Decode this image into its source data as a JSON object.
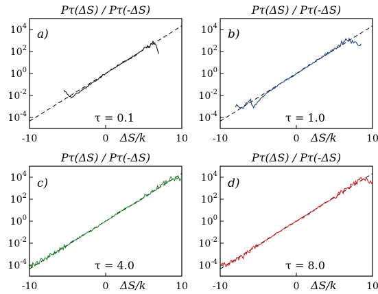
{
  "chart_data": [
    {
      "type": "line",
      "panel_label": "a)",
      "title": "Pτ(ΔS) / Pτ(-ΔS)",
      "annotation": "τ = 0.1",
      "xlabel": "ΔS/k",
      "xlim": [
        -10,
        10
      ],
      "ylim": [
        -5,
        5
      ],
      "yscale": "log10",
      "x_ticks": [
        "-10",
        "0",
        "10"
      ],
      "y_ticks": [
        {
          "label": "10^4",
          "exp": 4
        },
        {
          "label": "10^2",
          "exp": 2
        },
        {
          "label": "10^0",
          "exp": 0
        },
        {
          "label": "10^-2",
          "exp": -2
        },
        {
          "label": "10^-4",
          "exp": -4
        }
      ],
      "series": [
        {
          "color": "#000000",
          "style": "dashed",
          "x": [
            -10,
            10
          ],
          "y_log10": [
            -4.34,
            4.34
          ]
        },
        {
          "color": "#111111",
          "style": "solid",
          "x": [
            -5.5,
            -4.5,
            -3.5,
            -2,
            0,
            2,
            4,
            5.5,
            6.5,
            7
          ],
          "y_log10": [
            -1.7,
            -2.2,
            -1.7,
            -1.0,
            0.0,
            0.9,
            1.7,
            2.4,
            2.9,
            1.8
          ]
        }
      ]
    },
    {
      "type": "line",
      "panel_label": "b)",
      "title": "Pτ(ΔS) / Pτ(-ΔS)",
      "annotation": "τ = 1.0",
      "xlabel": "ΔS/k",
      "xlim": [
        -10,
        10
      ],
      "ylim": [
        -5,
        5
      ],
      "yscale": "log10",
      "x_ticks": [
        "-10",
        "0",
        "10"
      ],
      "y_ticks": [
        {
          "label": "10^4",
          "exp": 4
        },
        {
          "label": "10^2",
          "exp": 2
        },
        {
          "label": "10^0",
          "exp": 0
        },
        {
          "label": "10^-2",
          "exp": -2
        },
        {
          "label": "10^-4",
          "exp": -4
        }
      ],
      "series": [
        {
          "color": "#000000",
          "style": "dashed",
          "x": [
            -10,
            10
          ],
          "y_log10": [
            -4.34,
            4.34
          ]
        },
        {
          "color": "#1f3f8f",
          "style": "solid",
          "x": [
            -8,
            -7,
            -6,
            -5.5,
            -5,
            -4,
            -2,
            0,
            2,
            4,
            5.5,
            6.5,
            7.5,
            8.5
          ],
          "y_log10": [
            -2.9,
            -3.0,
            -2.5,
            -3.1,
            -2.6,
            -1.8,
            -0.9,
            0.0,
            0.9,
            1.8,
            2.4,
            3.2,
            2.8,
            2.7
          ]
        }
      ]
    },
    {
      "type": "line",
      "panel_label": "c)",
      "title": "Pτ(ΔS) / Pτ(-ΔS)",
      "annotation": "τ = 4.0",
      "xlabel": "ΔS/k",
      "xlim": [
        -10,
        10
      ],
      "ylim": [
        -5,
        5
      ],
      "yscale": "log10",
      "x_ticks": [
        "-10",
        "0",
        "10"
      ],
      "y_ticks": [
        {
          "label": "10^4",
          "exp": 4
        },
        {
          "label": "10^2",
          "exp": 2
        },
        {
          "label": "10^0",
          "exp": 0
        },
        {
          "label": "10^-2",
          "exp": -2
        },
        {
          "label": "10^-4",
          "exp": -4
        }
      ],
      "series": [
        {
          "color": "#000000",
          "style": "dashed",
          "x": [
            -10,
            10
          ],
          "y_log10": [
            -4.34,
            4.34
          ]
        },
        {
          "color": "#1f8a2e",
          "style": "solid",
          "x": [
            -10,
            -9,
            -8,
            -6,
            -4,
            -2,
            0,
            2,
            4,
            6,
            7.5,
            8.5,
            10
          ],
          "y_log10": [
            -4.1,
            -3.8,
            -3.4,
            -2.6,
            -1.7,
            -0.9,
            0.0,
            0.9,
            1.7,
            2.6,
            3.4,
            3.8,
            3.9
          ]
        }
      ]
    },
    {
      "type": "line",
      "panel_label": "d)",
      "title": "Pτ(ΔS) / Pτ(-ΔS)",
      "annotation": "τ = 8.0",
      "xlabel": "ΔS/k",
      "xlim": [
        -10,
        10
      ],
      "ylim": [
        -5,
        5
      ],
      "yscale": "log10",
      "x_ticks": [
        "-10",
        "0",
        "10"
      ],
      "y_ticks": [
        {
          "label": "10^4",
          "exp": 4
        },
        {
          "label": "10^2",
          "exp": 2
        },
        {
          "label": "10^0",
          "exp": 0
        },
        {
          "label": "10^-2",
          "exp": -2
        },
        {
          "label": "10^-4",
          "exp": -4
        }
      ],
      "series": [
        {
          "color": "#000000",
          "style": "dashed",
          "x": [
            -10,
            10
          ],
          "y_log10": [
            -4.34,
            4.34
          ]
        },
        {
          "color": "#e02020",
          "style": "solid",
          "x": [
            -10,
            -9,
            -7,
            -5,
            -3,
            -1,
            0,
            1,
            3,
            5,
            7,
            8.5,
            10
          ],
          "y_log10": [
            -4.0,
            -3.9,
            -3.2,
            -2.2,
            -1.3,
            -0.4,
            0.0,
            0.4,
            1.3,
            2.2,
            3.1,
            3.8,
            3.6
          ]
        }
      ]
    }
  ]
}
